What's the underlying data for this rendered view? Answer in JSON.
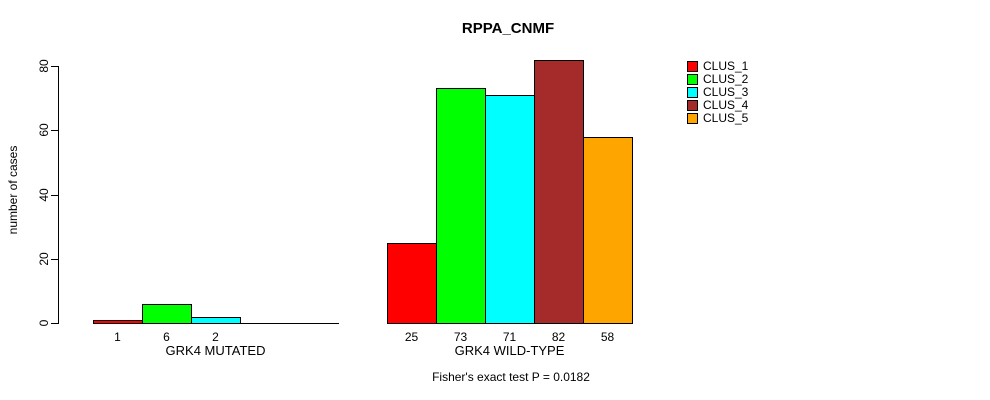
{
  "title": "RPPA_CNMF",
  "footer": "Fisher's exact test P = 0.0182",
  "chart_data": {
    "type": "bar",
    "title": "RPPA_CNMF",
    "xlabel": "",
    "ylabel": "number of cases",
    "ylim": [
      0,
      80
    ],
    "yticks": [
      0,
      20,
      40,
      60,
      80
    ],
    "grid": false,
    "legend_position": "right",
    "categories": [
      "GRK4 MUTATED",
      "GRK4 WILD-TYPE"
    ],
    "series": [
      {
        "name": "CLUS_1",
        "color": "#FF0000",
        "values": [
          1,
          25
        ]
      },
      {
        "name": "CLUS_2",
        "color": "#00FF00",
        "values": [
          6,
          73
        ]
      },
      {
        "name": "CLUS_3",
        "color": "#00FFFF",
        "values": [
          2,
          71
        ]
      },
      {
        "name": "CLUS_4",
        "color": "#A52A2A",
        "values": [
          0,
          82
        ]
      },
      {
        "name": "CLUS_5",
        "color": "#FFA500",
        "values": [
          0,
          58
        ]
      }
    ],
    "bar_value_labels": [
      [
        "1",
        "6",
        "2",
        "",
        ""
      ],
      [
        "25",
        "73",
        "71",
        "82",
        "58"
      ]
    ],
    "annotation": "Fisher's exact test P = 0.0182"
  }
}
